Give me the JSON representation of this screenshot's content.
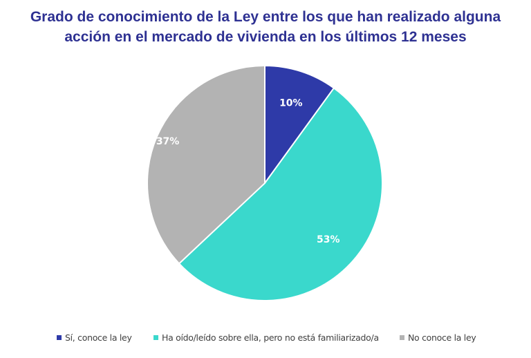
{
  "chart_data": {
    "type": "pie",
    "title": "Grado de conocimiento de la Ley entre los que han realizado alguna acción en el mercado de vivienda en los últimos 12 meses",
    "title_lines": [
      "Grado de conocimiento de la Ley entre los que han realizado alguna",
      "acción en el mercado de vivienda en los últimos 12 meses"
    ],
    "start_angle_deg": 0,
    "direction": "clockwise",
    "slices": [
      {
        "label": "Sí, conoce la ley",
        "value": 10,
        "display": "10%",
        "color": "#2e3aa8"
      },
      {
        "label": "Ha oído/leído sobre ella, pero no está familiarizado/a",
        "value": 53,
        "display": "53%",
        "color": "#3ad8cc"
      },
      {
        "label": "No conoce la ley",
        "value": 37,
        "display": "37%",
        "color": "#b3b3b3"
      }
    ],
    "legend_position": "bottom"
  }
}
